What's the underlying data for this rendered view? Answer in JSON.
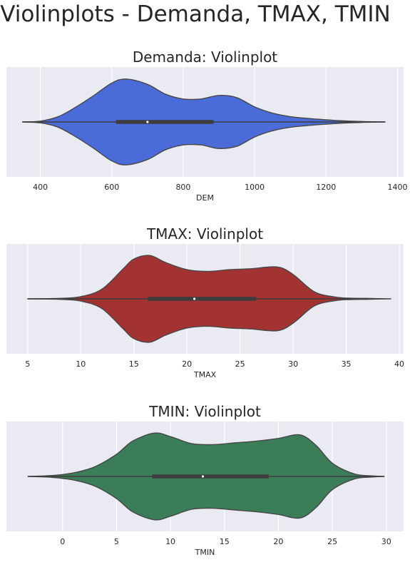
{
  "suptitle": "Violinplots - Demanda, TMAX, TMIN",
  "chart_data": [
    {
      "type": "violin",
      "title": "Demanda: Violinplot",
      "xlabel": "DEM",
      "xlim": [
        305,
        1417
      ],
      "xticks": [
        400,
        600,
        800,
        1000,
        1200,
        1400
      ],
      "tick_labels": [
        "400",
        "600",
        "800",
        "1000",
        "1200",
        "1400"
      ],
      "grid": true,
      "color": "#4a6bd8",
      "density_x": [
        350,
        400,
        450,
        500,
        550,
        600,
        640,
        700,
        750,
        800,
        850,
        900,
        950,
        1000,
        1050,
        1100,
        1150,
        1200,
        1250,
        1300,
        1365
      ],
      "density_y": [
        0.0,
        0.02,
        0.12,
        0.34,
        0.6,
        0.88,
        0.97,
        0.85,
        0.63,
        0.52,
        0.52,
        0.6,
        0.55,
        0.34,
        0.2,
        0.12,
        0.08,
        0.05,
        0.025,
        0.01,
        0.0
      ],
      "q1": 612,
      "median": 700,
      "q3": 885,
      "whisker_low": 350,
      "whisker_high": 1365
    },
    {
      "type": "violin",
      "title": "TMAX: Violinplot",
      "xlabel": "TMAX",
      "xlim": [
        3.0,
        40.4
      ],
      "xticks": [
        5,
        10,
        15,
        20,
        25,
        30,
        35,
        40
      ],
      "tick_labels": [
        "5",
        "10",
        "15",
        "20",
        "25",
        "30",
        "35",
        "40"
      ],
      "grid": true,
      "color": "#a33232",
      "density_x": [
        5,
        8,
        10,
        12,
        14,
        15,
        16.5,
        18,
        20,
        22,
        24,
        26,
        28.5,
        30,
        32,
        34,
        35.5,
        37,
        39.2
      ],
      "density_y": [
        0.0,
        0.01,
        0.05,
        0.22,
        0.68,
        0.9,
        0.98,
        0.82,
        0.66,
        0.62,
        0.66,
        0.68,
        0.72,
        0.55,
        0.16,
        0.04,
        0.015,
        0.01,
        0.0
      ],
      "q1": 16.3,
      "median": 20.7,
      "q3": 26.5,
      "whisker_low": 5,
      "whisker_high": 37
    },
    {
      "type": "violin",
      "title": "TMIN: Violinplot",
      "xlabel": "TMIN",
      "xlim": [
        -5.2,
        31.6
      ],
      "xticks": [
        0,
        5,
        10,
        15,
        20,
        25,
        30
      ],
      "tick_labels": [
        "0",
        "5",
        "10",
        "15",
        "20",
        "25",
        "30"
      ],
      "grid": true,
      "color": "#3a7d58",
      "density_x": [
        -3.2,
        -1,
        1,
        3,
        5,
        6.5,
        8.5,
        10,
        12,
        14,
        16,
        18,
        20,
        22,
        23.5,
        25,
        27,
        28.5,
        29.8
      ],
      "density_y": [
        0.0,
        0.02,
        0.08,
        0.22,
        0.5,
        0.8,
        0.98,
        0.9,
        0.74,
        0.72,
        0.76,
        0.8,
        0.86,
        0.94,
        0.7,
        0.3,
        0.06,
        0.015,
        0.0
      ],
      "q1": 8.3,
      "median": 13.0,
      "q3": 19.1,
      "whisker_low": -3.2,
      "whisker_high": 29.8
    }
  ]
}
